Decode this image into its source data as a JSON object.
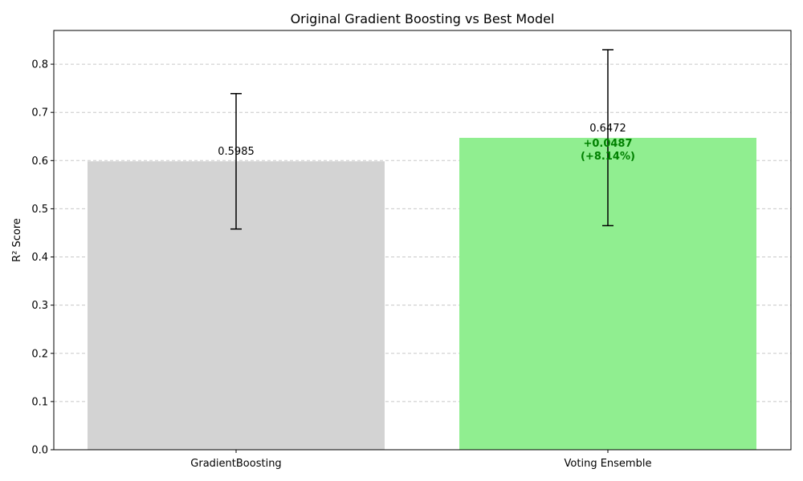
{
  "chart_data": {
    "type": "bar",
    "title": "Original Gradient Boosting vs Best Model",
    "xlabel": "",
    "ylabel": "R² Score",
    "ylim": [
      0,
      0.87
    ],
    "yticks": [
      0.0,
      0.1,
      0.2,
      0.3,
      0.4,
      0.5,
      0.6,
      0.7,
      0.8
    ],
    "ytick_labels": [
      "0.0",
      "0.1",
      "0.2",
      "0.3",
      "0.4",
      "0.5",
      "0.6",
      "0.7",
      "0.8"
    ],
    "grid": "y, dashed",
    "categories": [
      "GradientBoosting",
      "Voting Ensemble"
    ],
    "values": [
      0.5985,
      0.6472
    ],
    "value_labels": [
      "0.5985",
      "0.6472"
    ],
    "error_bars": [
      [
        0.458,
        0.739
      ],
      [
        0.465,
        0.83
      ]
    ],
    "colors": [
      "#d3d3d3",
      "#90ee90"
    ],
    "annotation": {
      "line1": "+0.0487",
      "line2": "(+8.14%)",
      "color": "#008000"
    }
  }
}
